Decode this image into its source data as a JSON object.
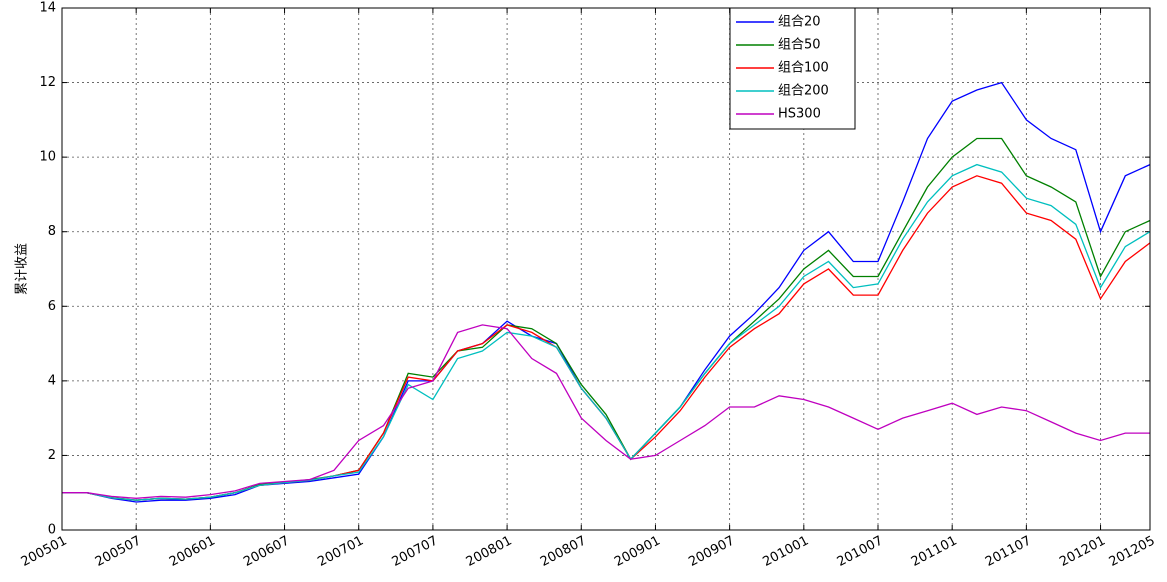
{
  "chart_data": {
    "type": "line",
    "ylabel": "累计收益",
    "x": [
      "200501",
      "200503",
      "200505",
      "200507",
      "200509",
      "200511",
      "200601",
      "200603",
      "200605",
      "200607",
      "200609",
      "200611",
      "200701",
      "200703",
      "200705",
      "200707",
      "200709",
      "200711",
      "200801",
      "200803",
      "200805",
      "200807",
      "200809",
      "200811",
      "200901",
      "200903",
      "200905",
      "200907",
      "200909",
      "200911",
      "201001",
      "201003",
      "201005",
      "201007",
      "201009",
      "201011",
      "201101",
      "201103",
      "201105",
      "201107",
      "201109",
      "201111",
      "201201",
      "201203",
      "201205"
    ],
    "xticks": [
      "200501",
      "200507",
      "200601",
      "200607",
      "200701",
      "200707",
      "200801",
      "200807",
      "200901",
      "200907",
      "201001",
      "201007",
      "201101",
      "201107",
      "201201",
      "201205"
    ],
    "ylim": [
      0,
      14
    ],
    "yticks": [
      0,
      2,
      4,
      6,
      8,
      10,
      12,
      14
    ],
    "grid": true,
    "legend": "upper-right",
    "series": [
      {
        "name": "组合20",
        "color": "#0000ff",
        "values": [
          1.0,
          1.0,
          0.85,
          0.75,
          0.8,
          0.8,
          0.85,
          0.95,
          1.2,
          1.25,
          1.3,
          1.4,
          1.5,
          2.5,
          4.0,
          4.0,
          4.8,
          5.0,
          5.6,
          5.2,
          5.0,
          3.8,
          3.0,
          1.9,
          2.6,
          3.3,
          4.3,
          5.2,
          5.8,
          6.5,
          7.5,
          8.0,
          7.2,
          7.2,
          8.8,
          10.5,
          11.5,
          11.8,
          12.0,
          11.0,
          10.5,
          10.2,
          8.0,
          9.5,
          9.8
        ]
      },
      {
        "name": "组合50",
        "color": "#008000",
        "values": [
          1.0,
          1.0,
          0.87,
          0.8,
          0.85,
          0.83,
          0.88,
          1.0,
          1.22,
          1.28,
          1.35,
          1.45,
          1.6,
          2.6,
          4.2,
          4.1,
          4.8,
          4.9,
          5.5,
          5.4,
          5.0,
          3.9,
          3.1,
          1.9,
          2.6,
          3.3,
          4.2,
          5.0,
          5.6,
          6.2,
          7.0,
          7.5,
          6.8,
          6.8,
          8.0,
          9.2,
          10.0,
          10.5,
          10.5,
          9.5,
          9.2,
          8.8,
          6.8,
          8.0,
          8.3
        ]
      },
      {
        "name": "组合100",
        "color": "#ff0000",
        "values": [
          1.0,
          1.0,
          0.86,
          0.8,
          0.85,
          0.83,
          0.88,
          1.0,
          1.2,
          1.27,
          1.33,
          1.45,
          1.6,
          2.6,
          4.1,
          4.0,
          4.8,
          5.0,
          5.5,
          5.3,
          4.9,
          3.8,
          3.0,
          1.9,
          2.5,
          3.2,
          4.1,
          4.9,
          5.4,
          5.8,
          6.6,
          7.0,
          6.3,
          6.3,
          7.5,
          8.5,
          9.2,
          9.5,
          9.3,
          8.5,
          8.3,
          7.8,
          6.2,
          7.2,
          7.7
        ]
      },
      {
        "name": "组合200",
        "color": "#00bfbf",
        "values": [
          1.0,
          1.0,
          0.86,
          0.8,
          0.85,
          0.83,
          0.88,
          1.0,
          1.2,
          1.27,
          1.33,
          1.45,
          1.55,
          2.5,
          3.9,
          3.5,
          4.6,
          4.8,
          5.3,
          5.2,
          4.9,
          3.8,
          3.0,
          1.9,
          2.6,
          3.3,
          4.2,
          5.0,
          5.5,
          6.0,
          6.8,
          7.2,
          6.5,
          6.6,
          7.8,
          8.8,
          9.5,
          9.8,
          9.6,
          8.9,
          8.7,
          8.2,
          6.5,
          7.6,
          8.0
        ]
      },
      {
        "name": "HS300",
        "color": "#bf00bf",
        "values": [
          1.0,
          1.0,
          0.9,
          0.85,
          0.9,
          0.88,
          0.95,
          1.05,
          1.25,
          1.3,
          1.35,
          1.6,
          2.4,
          2.8,
          3.8,
          4.0,
          5.3,
          5.5,
          5.4,
          4.6,
          4.2,
          3.0,
          2.4,
          1.9,
          2.0,
          2.4,
          2.8,
          3.3,
          3.3,
          3.6,
          3.5,
          3.3,
          3.0,
          2.7,
          3.0,
          3.2,
          3.4,
          3.1,
          3.3,
          3.2,
          2.9,
          2.6,
          2.4,
          2.6,
          2.6
        ]
      }
    ]
  }
}
